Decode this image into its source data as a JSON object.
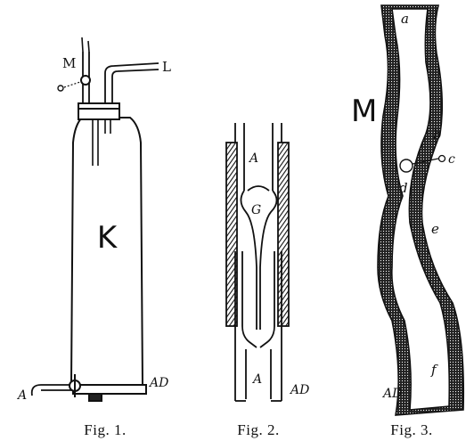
{
  "fig1": {
    "caption": "Fig. 1.",
    "labels": {
      "vessel": "K",
      "upper_tube": "M",
      "side_tube": "L",
      "stopcock": "A",
      "monogram": "AD"
    }
  },
  "fig2": {
    "caption": "Fig. 2.",
    "labels": {
      "upper": "A",
      "bulb": "G",
      "lower": "A",
      "monogram": "AD"
    }
  },
  "fig3": {
    "caption": "Fig. 3.",
    "labels": {
      "title": "M",
      "a": "a",
      "b": "b",
      "c": "c",
      "d": "d",
      "e": "e",
      "f": "f",
      "monogram": "AD"
    }
  },
  "colors": {
    "ink": "#111111",
    "paper": "#ffffff"
  }
}
